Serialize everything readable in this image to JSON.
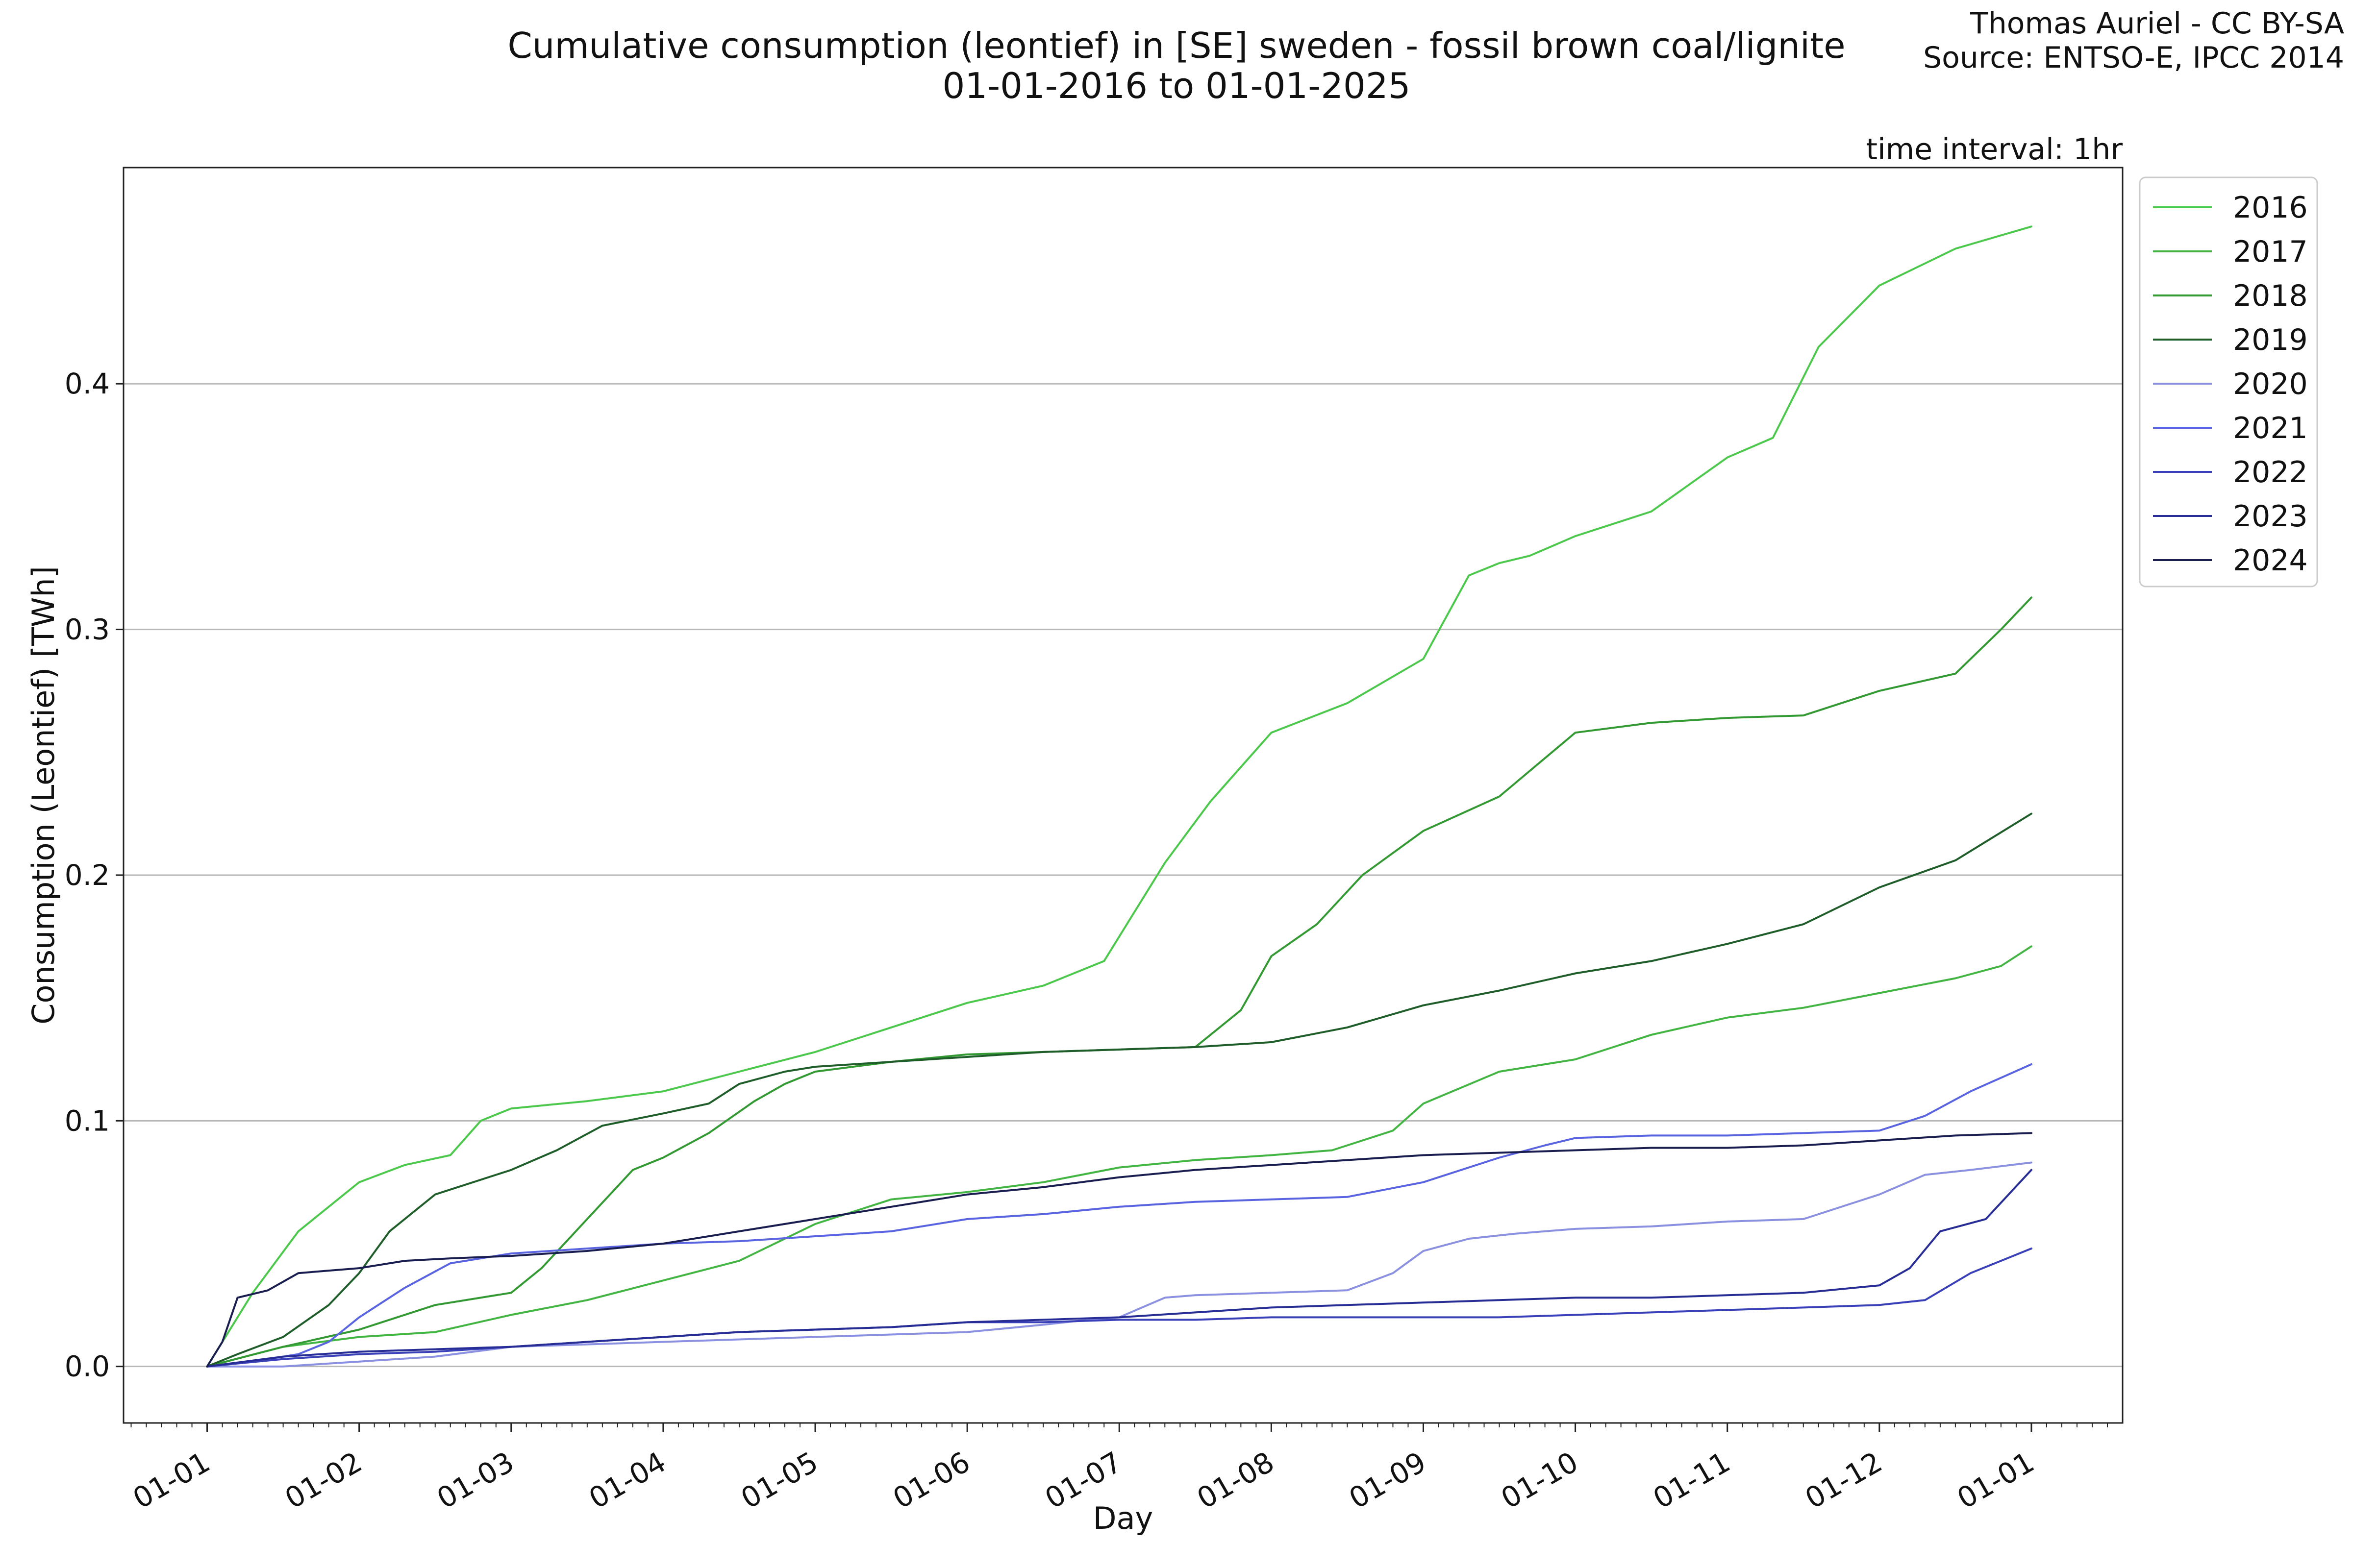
{
  "header": {
    "title_line1": "Cumulative consumption (leontief) in [SE] sweden - fossil brown coal/lignite",
    "title_line2": "01-01-2016 to 01-01-2025",
    "credit_line1": "Thomas Auriel - CC BY-SA",
    "credit_line2": "Source: ENTSO-E, IPCC 2014",
    "interval_note": "time interval: 1hr"
  },
  "chart_data": {
    "type": "line",
    "title": "Cumulative consumption (leontief) in [SE] sweden - fossil brown coal/lignite",
    "subtitle": "01-01-2016 to 01-01-2025",
    "xlabel": "Day",
    "ylabel": "Consumption (Leontief) [TWh]",
    "ylim": [
      -0.023,
      0.488
    ],
    "xlim_months": [
      -0.55,
      12.6
    ],
    "x_unit": "months since 01-01",
    "x_ticks": [
      0,
      1,
      2,
      3,
      4,
      5,
      6,
      7,
      8,
      9,
      10,
      11,
      12
    ],
    "x_tick_labels": [
      "01-01",
      "01-02",
      "01-03",
      "01-04",
      "01-05",
      "01-06",
      "01-07",
      "01-08",
      "01-09",
      "01-10",
      "01-11",
      "01-12",
      "01-01"
    ],
    "y_ticks": [
      0.0,
      0.1,
      0.2,
      0.3,
      0.4
    ],
    "y_tick_labels": [
      "0.0",
      "0.1",
      "0.2",
      "0.3",
      "0.4"
    ],
    "grid": "horizontal",
    "legend_position": "outside-top-right",
    "series": [
      {
        "name": "2016",
        "color": "#4cc94c",
        "x": [
          0,
          0.3,
          0.6,
          1,
          1.3,
          1.6,
          1.8,
          2,
          2.5,
          3,
          3.5,
          4,
          4.5,
          5,
          5.5,
          5.9,
          6,
          6.3,
          6.6,
          7,
          7.5,
          8,
          8.3,
          8.5,
          8.7,
          9,
          9.5,
          10,
          10.3,
          10.6,
          11,
          11.5,
          12
        ],
        "y": [
          0,
          0.03,
          0.055,
          0.075,
          0.082,
          0.086,
          0.1,
          0.105,
          0.108,
          0.112,
          0.12,
          0.128,
          0.138,
          0.148,
          0.155,
          0.165,
          0.175,
          0.205,
          0.23,
          0.258,
          0.27,
          0.288,
          0.322,
          0.327,
          0.33,
          0.338,
          0.348,
          0.37,
          0.378,
          0.415,
          0.44,
          0.455,
          0.464
        ]
      },
      {
        "name": "2017",
        "color": "#43b543",
        "x": [
          0,
          0.5,
          1,
          1.5,
          2,
          2.5,
          3,
          3.5,
          4,
          4.5,
          5,
          5.5,
          6,
          6.5,
          7,
          7.4,
          7.8,
          8,
          8.5,
          9,
          9.5,
          10,
          10.5,
          11,
          11.5,
          11.8,
          12
        ],
        "y": [
          0,
          0.008,
          0.012,
          0.014,
          0.021,
          0.027,
          0.035,
          0.043,
          0.058,
          0.068,
          0.071,
          0.075,
          0.081,
          0.084,
          0.086,
          0.088,
          0.096,
          0.107,
          0.12,
          0.125,
          0.135,
          0.142,
          0.146,
          0.152,
          0.158,
          0.163,
          0.171
        ]
      },
      {
        "name": "2018",
        "color": "#339933",
        "x": [
          0,
          0.5,
          1,
          1.5,
          2,
          2.2,
          2.5,
          2.8,
          3,
          3.3,
          3.6,
          3.8,
          4,
          4.5,
          5,
          5.5,
          6,
          6.5,
          6.8,
          7,
          7.3,
          7.6,
          8,
          8.5,
          9,
          9.5,
          10,
          10.5,
          11,
          11.5,
          11.8,
          12
        ],
        "y": [
          0,
          0.008,
          0.015,
          0.025,
          0.03,
          0.04,
          0.06,
          0.08,
          0.085,
          0.095,
          0.108,
          0.115,
          0.12,
          0.124,
          0.127,
          0.128,
          0.129,
          0.13,
          0.145,
          0.167,
          0.18,
          0.2,
          0.218,
          0.232,
          0.258,
          0.262,
          0.264,
          0.265,
          0.275,
          0.282,
          0.3,
          0.313
        ]
      },
      {
        "name": "2019",
        "color": "#1f5e2a",
        "x": [
          0,
          0.2,
          0.5,
          0.8,
          1,
          1.2,
          1.5,
          1.8,
          2,
          2.3,
          2.6,
          3,
          3.3,
          3.5,
          3.8,
          4,
          4.5,
          5,
          5.5,
          6,
          6.5,
          7,
          7.5,
          8,
          8.5,
          9,
          9.5,
          10,
          10.5,
          11,
          11.5,
          12
        ],
        "y": [
          0,
          0.005,
          0.012,
          0.025,
          0.038,
          0.055,
          0.07,
          0.076,
          0.08,
          0.088,
          0.098,
          0.103,
          0.107,
          0.115,
          0.12,
          0.122,
          0.124,
          0.126,
          0.128,
          0.129,
          0.13,
          0.132,
          0.138,
          0.147,
          0.153,
          0.16,
          0.165,
          0.172,
          0.18,
          0.195,
          0.206,
          0.225
        ]
      },
      {
        "name": "2020",
        "color": "#8b91e0",
        "x": [
          0,
          0.5,
          1,
          1.5,
          2,
          2.5,
          3,
          3.5,
          4,
          4.5,
          5,
          5.5,
          5.8,
          6,
          6.3,
          6.5,
          7,
          7.5,
          7.8,
          8,
          8.3,
          8.6,
          9,
          9.5,
          10,
          10.5,
          11,
          11.3,
          11.6,
          12
        ],
        "y": [
          0,
          0,
          0.002,
          0.004,
          0.008,
          0.009,
          0.01,
          0.011,
          0.012,
          0.013,
          0.014,
          0.017,
          0.019,
          0.02,
          0.028,
          0.029,
          0.03,
          0.031,
          0.038,
          0.047,
          0.052,
          0.054,
          0.056,
          0.057,
          0.059,
          0.06,
          0.07,
          0.078,
          0.08,
          0.083
        ]
      },
      {
        "name": "2021",
        "color": "#5a64e0",
        "x": [
          0,
          0.3,
          0.6,
          0.8,
          1,
          1.3,
          1.6,
          2,
          2.5,
          3,
          3.5,
          4,
          4.5,
          5,
          5.5,
          6,
          6.5,
          7,
          7.5,
          8,
          8.5,
          8.8,
          9,
          9.5,
          10,
          10.5,
          11,
          11.3,
          11.6,
          12
        ],
        "y": [
          0,
          0.002,
          0.005,
          0.01,
          0.02,
          0.032,
          0.042,
          0.046,
          0.048,
          0.05,
          0.051,
          0.053,
          0.055,
          0.06,
          0.062,
          0.065,
          0.067,
          0.068,
          0.069,
          0.075,
          0.085,
          0.09,
          0.093,
          0.094,
          0.094,
          0.095,
          0.096,
          0.102,
          0.112,
          0.123
        ]
      },
      {
        "name": "2022",
        "color": "#3a40b8",
        "x": [
          0,
          0.5,
          1,
          1.5,
          2,
          2.5,
          3,
          3.5,
          4,
          4.5,
          5,
          5.5,
          6,
          6.5,
          7,
          7.5,
          8,
          8.5,
          9,
          9.5,
          10,
          10.5,
          11,
          11.3,
          11.6,
          12
        ],
        "y": [
          0,
          0.003,
          0.005,
          0.006,
          0.008,
          0.01,
          0.012,
          0.014,
          0.015,
          0.016,
          0.018,
          0.018,
          0.019,
          0.019,
          0.02,
          0.02,
          0.02,
          0.02,
          0.021,
          0.022,
          0.023,
          0.024,
          0.025,
          0.027,
          0.038,
          0.048
        ]
      },
      {
        "name": "2023",
        "color": "#272d94",
        "x": [
          0,
          0.5,
          1,
          1.5,
          2,
          2.5,
          3,
          3.5,
          4,
          4.5,
          5,
          5.5,
          6,
          6.5,
          7,
          7.5,
          8,
          8.5,
          9,
          9.5,
          10,
          10.5,
          11,
          11.2,
          11.4,
          11.7,
          12
        ],
        "y": [
          0,
          0.004,
          0.006,
          0.007,
          0.008,
          0.01,
          0.012,
          0.014,
          0.015,
          0.016,
          0.018,
          0.019,
          0.02,
          0.022,
          0.024,
          0.025,
          0.026,
          0.027,
          0.028,
          0.028,
          0.029,
          0.03,
          0.033,
          0.04,
          0.055,
          0.06,
          0.08
        ]
      },
      {
        "name": "2024",
        "color": "#1a1d4f",
        "x": [
          0,
          0.1,
          0.2,
          0.4,
          0.6,
          1,
          1.3,
          1.6,
          2,
          2.5,
          3,
          3.5,
          4,
          4.5,
          5,
          5.5,
          6,
          6.5,
          7,
          7.5,
          8,
          8.5,
          9,
          9.5,
          10,
          10.5,
          11,
          11.5,
          12
        ],
        "y": [
          0,
          0.01,
          0.028,
          0.031,
          0.038,
          0.04,
          0.043,
          0.044,
          0.045,
          0.047,
          0.05,
          0.055,
          0.06,
          0.065,
          0.07,
          0.073,
          0.077,
          0.08,
          0.082,
          0.084,
          0.086,
          0.087,
          0.088,
          0.089,
          0.089,
          0.09,
          0.092,
          0.094,
          0.095
        ]
      }
    ]
  }
}
